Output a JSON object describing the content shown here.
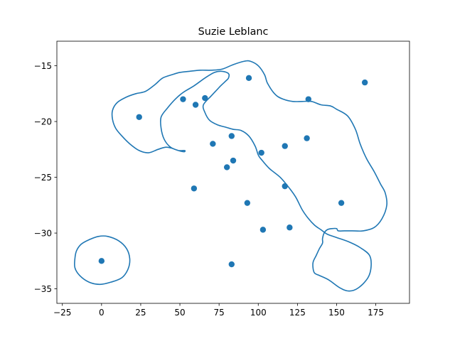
{
  "chart_data": {
    "type": "scatter",
    "title": "Suzie Leblanc",
    "xlabel": "",
    "ylabel": "",
    "xlim": [
      -28.5,
      196.5
    ],
    "ylim": [
      -36.3,
      -12.8
    ],
    "xticks": [
      -25,
      0,
      25,
      50,
      75,
      100,
      125,
      150,
      175
    ],
    "yticks": [
      -15,
      -20,
      -25,
      -30,
      -35
    ],
    "xtick_labels": [
      "−25",
      "0",
      "25",
      "50",
      "75",
      "100",
      "125",
      "150",
      "175"
    ],
    "ytick_labels": [
      "−15",
      "−20",
      "−25",
      "−30",
      "−35"
    ],
    "grid": false,
    "point_color": "#1f77b4",
    "contour_color": "#1f77b4",
    "points": [
      {
        "x": 0,
        "y": -32.5
      },
      {
        "x": 24,
        "y": -19.6
      },
      {
        "x": 52,
        "y": -18.0
      },
      {
        "x": 60,
        "y": -18.5
      },
      {
        "x": 66,
        "y": -17.9
      },
      {
        "x": 94,
        "y": -16.1
      },
      {
        "x": 71,
        "y": -22.0
      },
      {
        "x": 83,
        "y": -21.3
      },
      {
        "x": 80,
        "y": -24.1
      },
      {
        "x": 84,
        "y": -23.5
      },
      {
        "x": 102,
        "y": -22.8
      },
      {
        "x": 117,
        "y": -22.2
      },
      {
        "x": 131,
        "y": -21.5
      },
      {
        "x": 132,
        "y": -18.0
      },
      {
        "x": 168,
        "y": -16.5
      },
      {
        "x": 59,
        "y": -26.0
      },
      {
        "x": 117,
        "y": -25.8
      },
      {
        "x": 93,
        "y": -27.3
      },
      {
        "x": 153,
        "y": -27.3
      },
      {
        "x": 103,
        "y": -29.7
      },
      {
        "x": 120,
        "y": -29.5
      },
      {
        "x": 83,
        "y": -32.8
      }
    ],
    "contours": [
      {
        "x": [
          -16,
          -13,
          -8,
          -2,
          4,
          11,
          16,
          18,
          17,
          13,
          6,
          -1,
          -8,
          -14,
          -17,
          -17,
          -16
        ],
        "y": [
          -31.6,
          -31.0,
          -30.6,
          -30.3,
          -30.3,
          -30.7,
          -31.4,
          -32.3,
          -33.2,
          -34.0,
          -34.4,
          -34.6,
          -34.4,
          -33.8,
          -33.1,
          -32.3,
          -31.6
        ]
      },
      {
        "x": [
          7,
          10,
          16,
          22,
          28,
          34,
          39,
          45,
          50,
          56,
          63,
          70,
          77,
          84,
          91,
          95,
          100,
          104,
          106,
          111,
          116,
          122,
          128,
          134,
          140,
          146,
          150,
          157,
          162,
          165,
          169,
          174,
          178,
          181,
          182,
          179,
          174,
          167,
          160,
          155,
          151,
          150,
          147,
          144,
          142,
          141,
          141,
          139,
          137,
          135,
          135,
          136,
          139,
          145,
          152,
          158,
          164,
          170,
          172,
          171,
          165,
          158,
          150,
          144,
          140,
          136,
          132,
          128,
          124,
          120,
          114,
          107,
          102,
          100,
          98,
          94,
          89,
          84,
          79,
          74,
          69,
          66,
          65,
          70,
          74,
          76,
          79,
          81,
          81,
          77,
          72,
          66,
          59,
          52,
          47,
          42,
          38,
          38,
          40,
          44,
          49,
          52,
          53,
          53,
          49,
          45,
          41,
          36,
          30,
          24,
          18,
          13,
          9,
          7,
          7
        ],
        "y": [
          -19.0,
          -18.3,
          -17.8,
          -17.5,
          -17.3,
          -16.7,
          -16.1,
          -15.8,
          -15.6,
          -15.5,
          -15.4,
          -15.4,
          -15.3,
          -14.9,
          -14.6,
          -14.6,
          -15.0,
          -15.8,
          -16.6,
          -17.6,
          -18.0,
          -18.2,
          -18.2,
          -18.2,
          -18.5,
          -18.6,
          -18.9,
          -19.5,
          -20.7,
          -22.0,
          -23.3,
          -24.5,
          -25.6,
          -26.4,
          -27.5,
          -28.7,
          -29.5,
          -29.8,
          -29.8,
          -29.8,
          -29.8,
          -29.6,
          -29.6,
          -29.7,
          -30.0,
          -30.5,
          -30.9,
          -31.4,
          -32.0,
          -32.6,
          -33.2,
          -33.6,
          -33.8,
          -34.2,
          -34.9,
          -35.2,
          -34.9,
          -34.0,
          -33.0,
          -32.0,
          -31.3,
          -30.8,
          -30.4,
          -30.1,
          -29.7,
          -29.3,
          -28.7,
          -27.9,
          -26.8,
          -26.0,
          -25.0,
          -24.2,
          -23.4,
          -23.0,
          -22.2,
          -21.3,
          -20.8,
          -20.7,
          -20.5,
          -20.3,
          -19.9,
          -19.2,
          -18.5,
          -17.7,
          -17.1,
          -16.8,
          -16.4,
          -16.1,
          -15.7,
          -15.5,
          -15.6,
          -16.1,
          -16.8,
          -17.4,
          -18.0,
          -18.8,
          -19.6,
          -20.6,
          -21.6,
          -22.3,
          -22.6,
          -22.7,
          -22.7,
          -22.6,
          -22.6,
          -22.4,
          -22.3,
          -22.5,
          -22.8,
          -22.6,
          -22.0,
          -21.3,
          -20.6,
          -19.8,
          -19.0
        ]
      }
    ]
  }
}
